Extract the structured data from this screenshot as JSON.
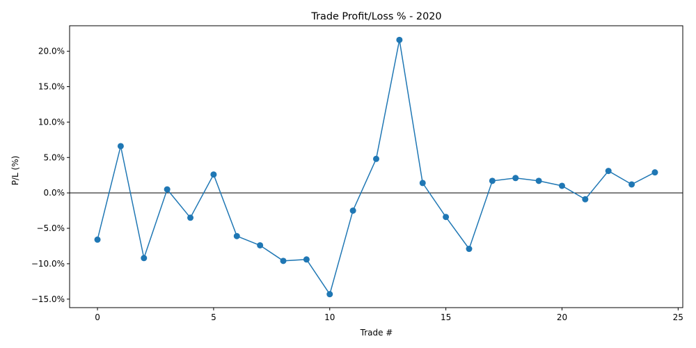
{
  "chart_data": {
    "type": "line",
    "title": "Trade Profit/Loss % - 2020",
    "xlabel": "Trade #",
    "ylabel": "P/L (%)",
    "xlim": [
      -1.2,
      25.2
    ],
    "ylim": [
      -16.2,
      23.6
    ],
    "x_ticks": [
      0,
      5,
      10,
      15,
      20,
      25
    ],
    "x_tick_labels": [
      "0",
      "5",
      "10",
      "15",
      "20",
      "25"
    ],
    "y_ticks": [
      -15,
      -10,
      -5,
      0,
      5,
      10,
      15,
      20
    ],
    "y_tick_labels": [
      "−15.0%",
      "−10.0%",
      "−5.0%",
      "0.0%",
      "5.0%",
      "10.0%",
      "15.0%",
      "20.0%"
    ],
    "reference_line_y": 0,
    "grid": false,
    "series": [
      {
        "color": "#1f77b4",
        "marker": "circle",
        "x": [
          0,
          1,
          2,
          3,
          4,
          5,
          6,
          7,
          8,
          9,
          10,
          11,
          12,
          13,
          14,
          15,
          16,
          17,
          18,
          19,
          20,
          21,
          22,
          23,
          24
        ],
        "values": [
          -6.6,
          6.6,
          -9.2,
          0.5,
          -3.5,
          2.6,
          -6.1,
          -7.4,
          -9.6,
          -9.4,
          -14.3,
          -2.5,
          4.8,
          21.6,
          1.4,
          -3.4,
          -7.9,
          1.7,
          2.1,
          1.7,
          1.0,
          -0.9,
          3.1,
          1.2,
          2.9
        ]
      }
    ]
  }
}
